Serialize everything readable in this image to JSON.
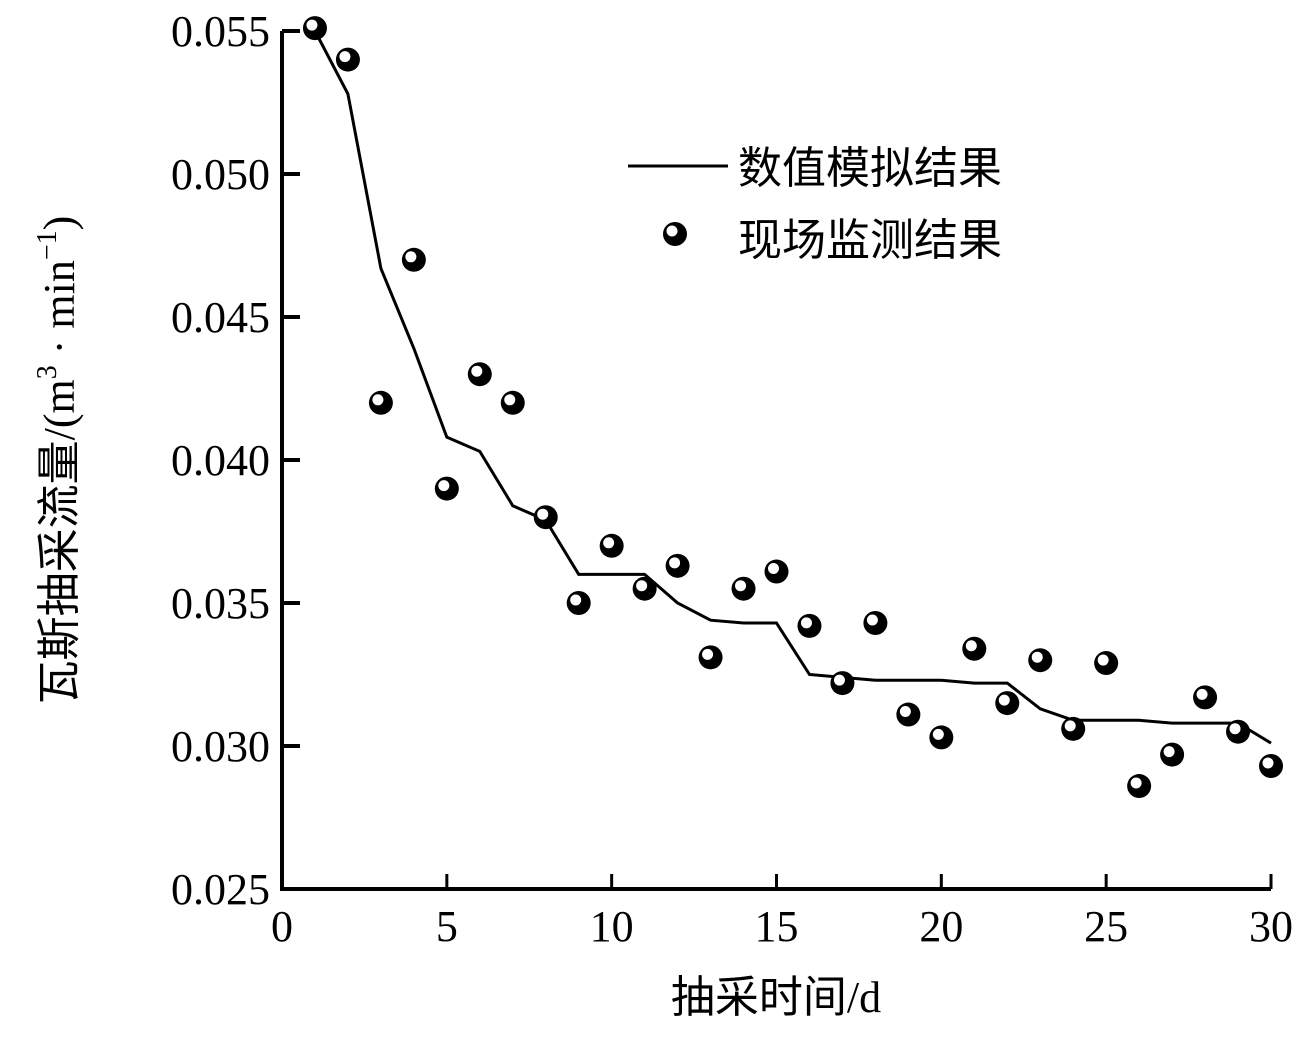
{
  "chart_data": {
    "type": "line+scatter",
    "title": "",
    "xlabel": "抽采时间/d",
    "ylabel": "瓦斯抽采流量/(m³·min⁻¹)",
    "ylabel_parts": {
      "prefix": "瓦斯抽采流量/(m",
      "sup1": "3",
      "mid": " · min",
      "sup2": "−1",
      "suffix": ")"
    },
    "xlim": [
      0,
      30
    ],
    "ylim": [
      0.025,
      0.055
    ],
    "xticks": [
      0,
      5,
      10,
      15,
      20,
      25,
      30
    ],
    "xtick_labels": [
      "0",
      "5",
      "10",
      "15",
      "20",
      "25",
      "30"
    ],
    "yticks": [
      0.025,
      0.03,
      0.035,
      0.04,
      0.045,
      0.05,
      0.055
    ],
    "ytick_labels": [
      "0.025",
      "0.030",
      "0.035",
      "0.040",
      "0.045",
      "0.050",
      "0.055"
    ],
    "grid": false,
    "legend_position": "upper right",
    "x": [
      1,
      2,
      3,
      4,
      5,
      6,
      7,
      8,
      9,
      10,
      11,
      12,
      13,
      14,
      15,
      16,
      17,
      18,
      19,
      20,
      21,
      22,
      23,
      24,
      25,
      26,
      27,
      28,
      29,
      30
    ],
    "series": [
      {
        "name": "数值模拟结果",
        "style": "line",
        "color": "#000000",
        "values": [
          0.055,
          0.0528,
          0.0467,
          0.0439,
          0.0408,
          0.0403,
          0.0384,
          0.0379,
          0.036,
          0.036,
          0.036,
          0.035,
          0.0344,
          0.0343,
          0.0343,
          0.0325,
          0.0324,
          0.0323,
          0.0323,
          0.0323,
          0.0322,
          0.0322,
          0.0313,
          0.0309,
          0.0309,
          0.0309,
          0.0308,
          0.0308,
          0.0308,
          0.0301
        ]
      },
      {
        "name": "现场监测结果",
        "style": "scatter",
        "marker": "shaded-sphere",
        "color": "#000000",
        "values": [
          0.0551,
          0.054,
          0.042,
          0.047,
          0.039,
          0.043,
          0.042,
          0.038,
          0.035,
          0.037,
          0.0355,
          0.0363,
          0.0331,
          0.0355,
          0.0361,
          0.0342,
          0.0322,
          0.0343,
          0.0311,
          0.0303,
          0.0334,
          0.0315,
          0.033,
          0.0306,
          0.0329,
          0.0286,
          0.0297,
          0.0317,
          0.0305,
          0.0293
        ]
      }
    ]
  }
}
